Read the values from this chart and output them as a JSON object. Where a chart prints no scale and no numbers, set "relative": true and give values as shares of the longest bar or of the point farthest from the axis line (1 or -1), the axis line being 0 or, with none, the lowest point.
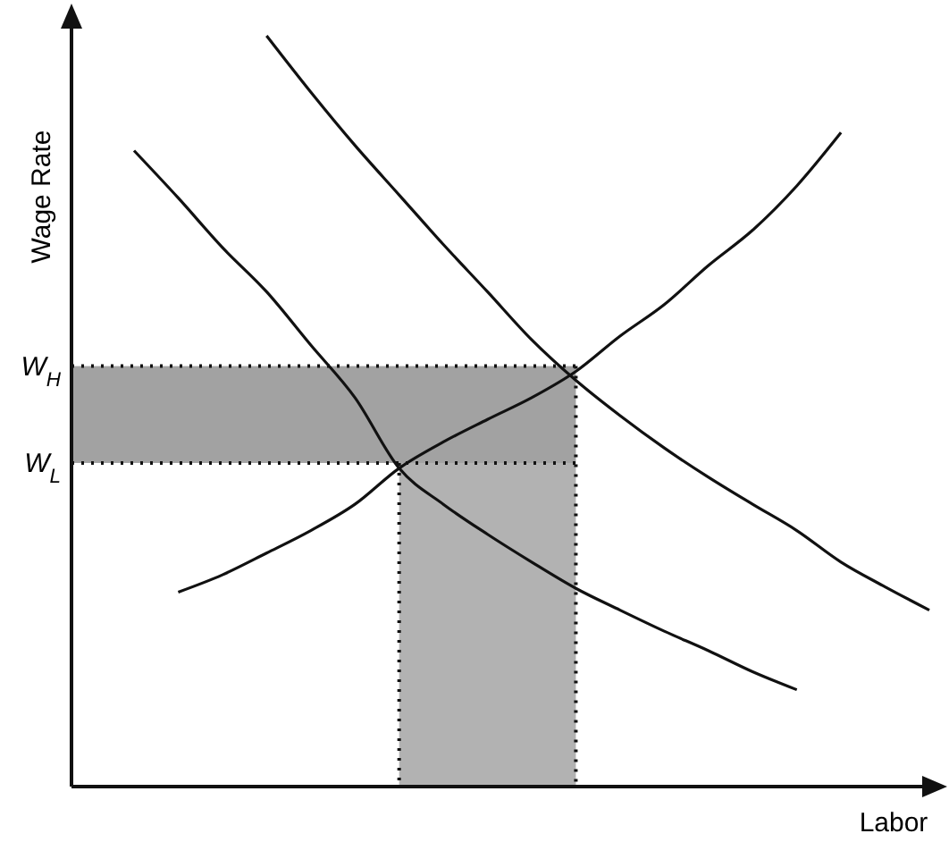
{
  "chart_data": {
    "type": "line",
    "relative": true,
    "xlabel": "Labor",
    "ylabel": "Wage Rate",
    "categories": [
      null,
      null,
      null,
      null,
      null,
      null,
      null,
      null,
      null,
      null,
      null,
      null,
      null,
      null,
      null,
      null,
      null,
      null,
      null
    ],
    "series": [
      {
        "color": "#111111",
        "values": [
          null,
          null,
          null,
          1.0,
          0.925,
          0.854,
          0.788,
          0.722,
          0.659,
          0.595,
          0.541,
          0.494,
          0.451,
          0.412,
          0.376,
          0.341,
          0.299,
          0.266,
          0.235
        ]
      },
      {
        "color": "#111111",
        "values": [
          0.847,
          0.784,
          0.718,
          0.659,
          0.588,
          0.518,
          0.424,
          0.376,
          0.336,
          0.299,
          0.264,
          0.235,
          0.207,
          0.181,
          0.153,
          0.129,
          null,
          null,
          null
        ]
      },
      {
        "color": "#111111",
        "values": [
          null,
          0.259,
          0.282,
          0.311,
          0.341,
          0.376,
          0.424,
          0.459,
          0.489,
          0.518,
          0.553,
          0.6,
          0.642,
          0.694,
          0.741,
          0.8,
          0.871,
          null,
          null
        ]
      }
    ],
    "ref_lines": [
      {
        "axis": "y",
        "value": 0.56,
        "label": "W$_{H}$",
        "line_style": "dotted"
      },
      {
        "axis": "y",
        "value": 0.431,
        "label": "W$_{L}$",
        "line_style": "dotted"
      }
    ],
    "line_style": "solid",
    "marker": "none"
  }
}
